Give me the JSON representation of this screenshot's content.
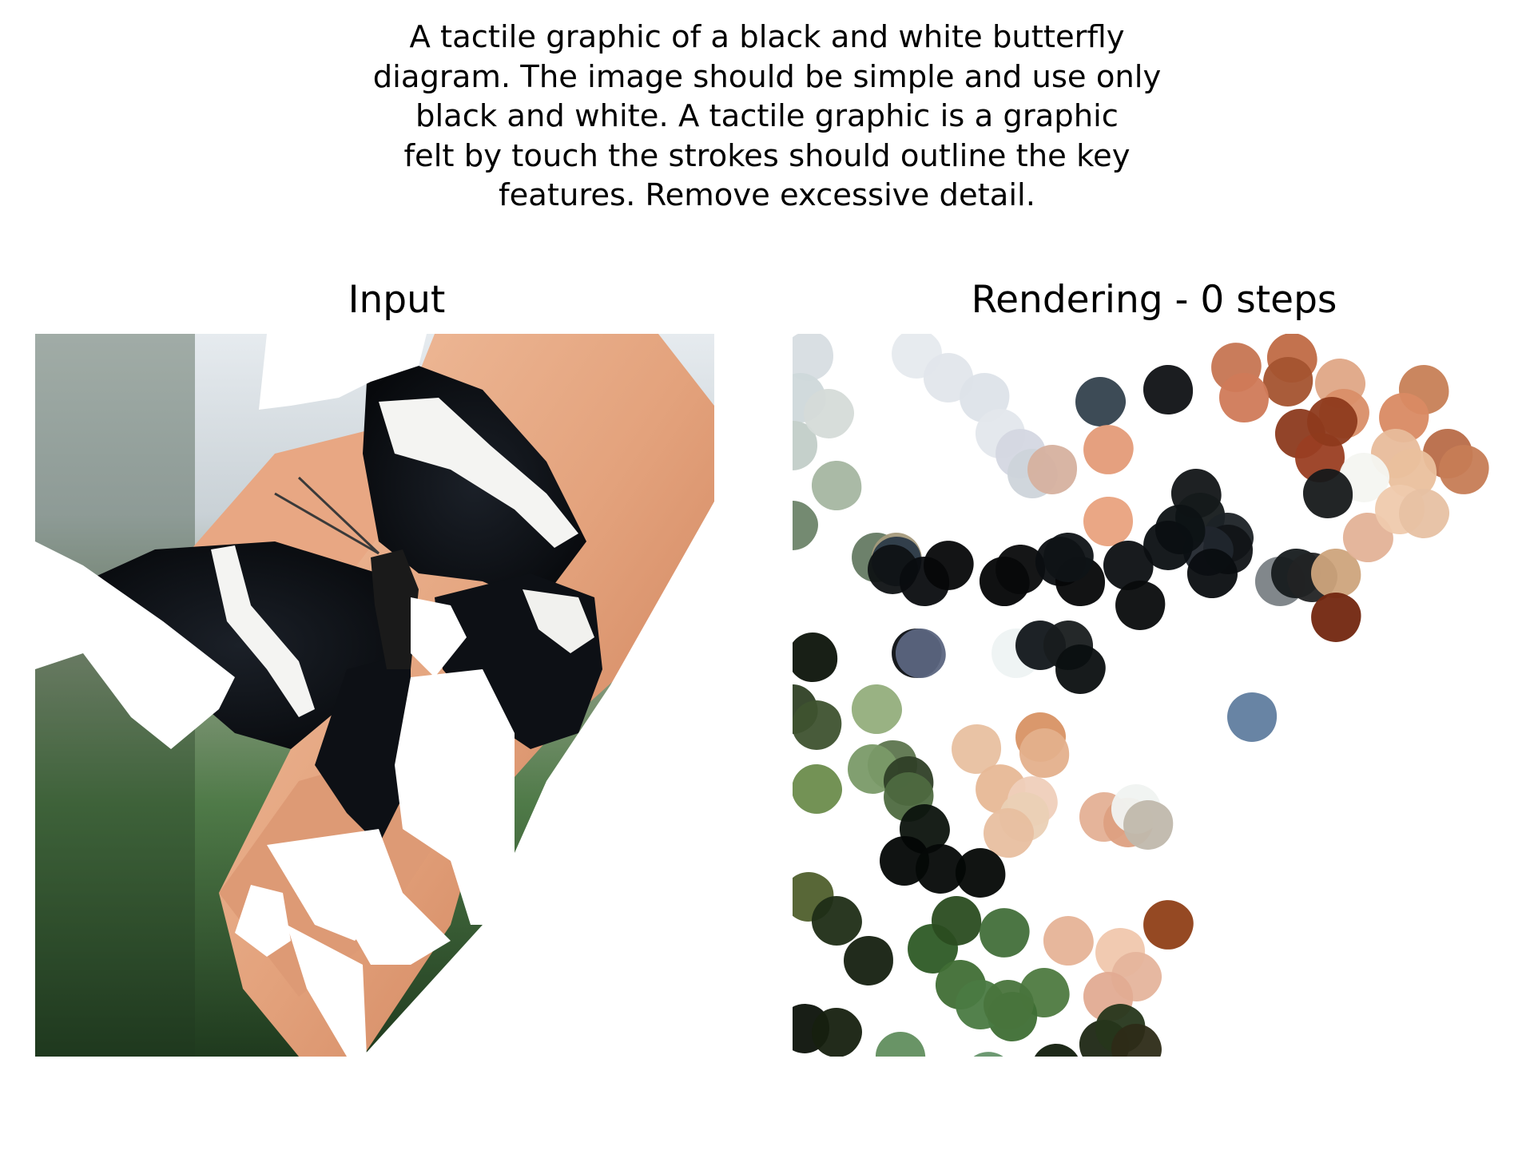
{
  "prompt_text": "A tactile graphic of a black and white butterfly\ndiagram. The image should be simple and use only\nblack and white. A tactile graphic is a graphic\nfelt by touch the strokes should outline the key\nfeatures. Remove excessive detail.",
  "panels": {
    "input": {
      "title": "Input",
      "image_description": "butterfly-on-fingers-photo-masked"
    },
    "rendering": {
      "title": "Rendering - 0 steps"
    }
  },
  "colors": {
    "background": "#ffffff",
    "text": "#000000",
    "wing_black": "#0c0f14",
    "wing_white": "#f4f4f2",
    "skin": "#e3a27c",
    "foliage": "#4f7a48",
    "sky": "#dde4ea"
  }
}
